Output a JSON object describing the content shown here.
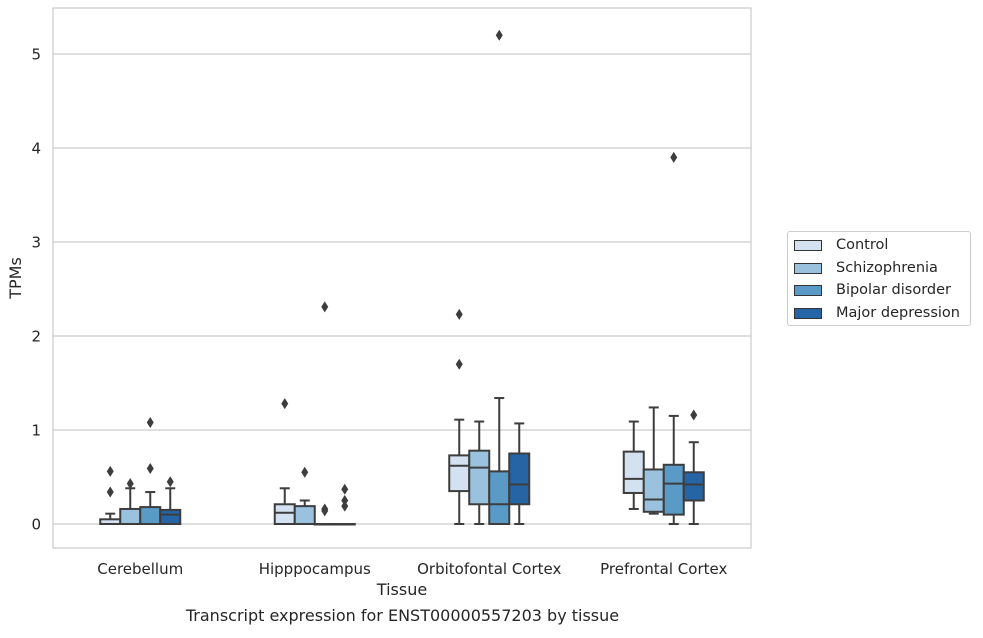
{
  "chart_data": {
    "type": "box",
    "title": "",
    "caption": "Transcript expression for ENST00000557203 by tissue",
    "xlabel": "Tissue",
    "ylabel": "TPMs",
    "ylim": [
      -0.25,
      5.5
    ],
    "yticks": [
      0,
      1,
      2,
      3,
      4,
      5
    ],
    "grid": "horizontal",
    "legend_position": "right",
    "categories": [
      "Cerebellum",
      "Hipppocampus",
      "Orbitofontal Cortex",
      "Prefrontal Cortex"
    ],
    "series": [
      {
        "name": "Control",
        "color": "#d4e1f0",
        "boxes": [
          {
            "q1": 0,
            "median": 0,
            "q3": 0.05,
            "whislo": 0,
            "whishi": 0.11,
            "fliers": [
              0.34,
              0.56
            ]
          },
          {
            "q1": 0,
            "median": 0.12,
            "q3": 0.21,
            "whislo": 0,
            "whishi": 0.38,
            "fliers": [
              1.28
            ]
          },
          {
            "q1": 0.35,
            "median": 0.62,
            "q3": 0.73,
            "whislo": 0,
            "whishi": 1.11,
            "fliers": [
              1.7,
              2.23
            ]
          },
          {
            "q1": 0.33,
            "median": 0.48,
            "q3": 0.77,
            "whislo": 0.16,
            "whishi": 1.09,
            "fliers": []
          }
        ]
      },
      {
        "name": "Schizophrenia",
        "color": "#9ac2de",
        "boxes": [
          {
            "q1": 0,
            "median": 0,
            "q3": 0.16,
            "whislo": 0,
            "whishi": 0.38,
            "fliers": [
              0.43
            ]
          },
          {
            "q1": 0,
            "median": 0,
            "q3": 0.19,
            "whislo": 0,
            "whishi": 0.25,
            "fliers": [
              0.55
            ]
          },
          {
            "q1": 0.21,
            "median": 0.6,
            "q3": 0.78,
            "whislo": 0,
            "whishi": 1.09,
            "fliers": []
          },
          {
            "q1": 0.13,
            "median": 0.26,
            "q3": 0.58,
            "whislo": 0.11,
            "whishi": 1.24,
            "fliers": []
          }
        ]
      },
      {
        "name": "Bipolar disorder",
        "color": "#5a9ac7",
        "boxes": [
          {
            "q1": 0,
            "median": 0,
            "q3": 0.18,
            "whislo": 0,
            "whishi": 0.34,
            "fliers": [
              0.59,
              1.08
            ]
          },
          {
            "q1": 0,
            "median": 0,
            "q3": 0,
            "whislo": 0,
            "whishi": 0,
            "fliers": [
              0.14,
              0.16,
              2.31
            ]
          },
          {
            "q1": 0,
            "median": 0.21,
            "q3": 0.56,
            "whislo": 0,
            "whishi": 1.34,
            "fliers": [
              5.2
            ]
          },
          {
            "q1": 0.1,
            "median": 0.43,
            "q3": 0.63,
            "whislo": 0,
            "whishi": 1.15,
            "fliers": [
              3.9
            ]
          }
        ]
      },
      {
        "name": "Major depression",
        "color": "#2565a6",
        "boxes": [
          {
            "q1": 0,
            "median": 0.1,
            "q3": 0.15,
            "whislo": 0,
            "whishi": 0.38,
            "fliers": [
              0.45
            ]
          },
          {
            "q1": 0,
            "median": 0,
            "q3": 0,
            "whislo": 0,
            "whishi": 0,
            "fliers": [
              0.19,
              0.25,
              0.37
            ]
          },
          {
            "q1": 0.21,
            "median": 0.42,
            "q3": 0.75,
            "whislo": 0,
            "whishi": 1.07,
            "fliers": []
          },
          {
            "q1": 0.25,
            "median": 0.42,
            "q3": 0.55,
            "whislo": 0,
            "whishi": 0.87,
            "fliers": [
              1.16
            ]
          }
        ]
      }
    ]
  }
}
